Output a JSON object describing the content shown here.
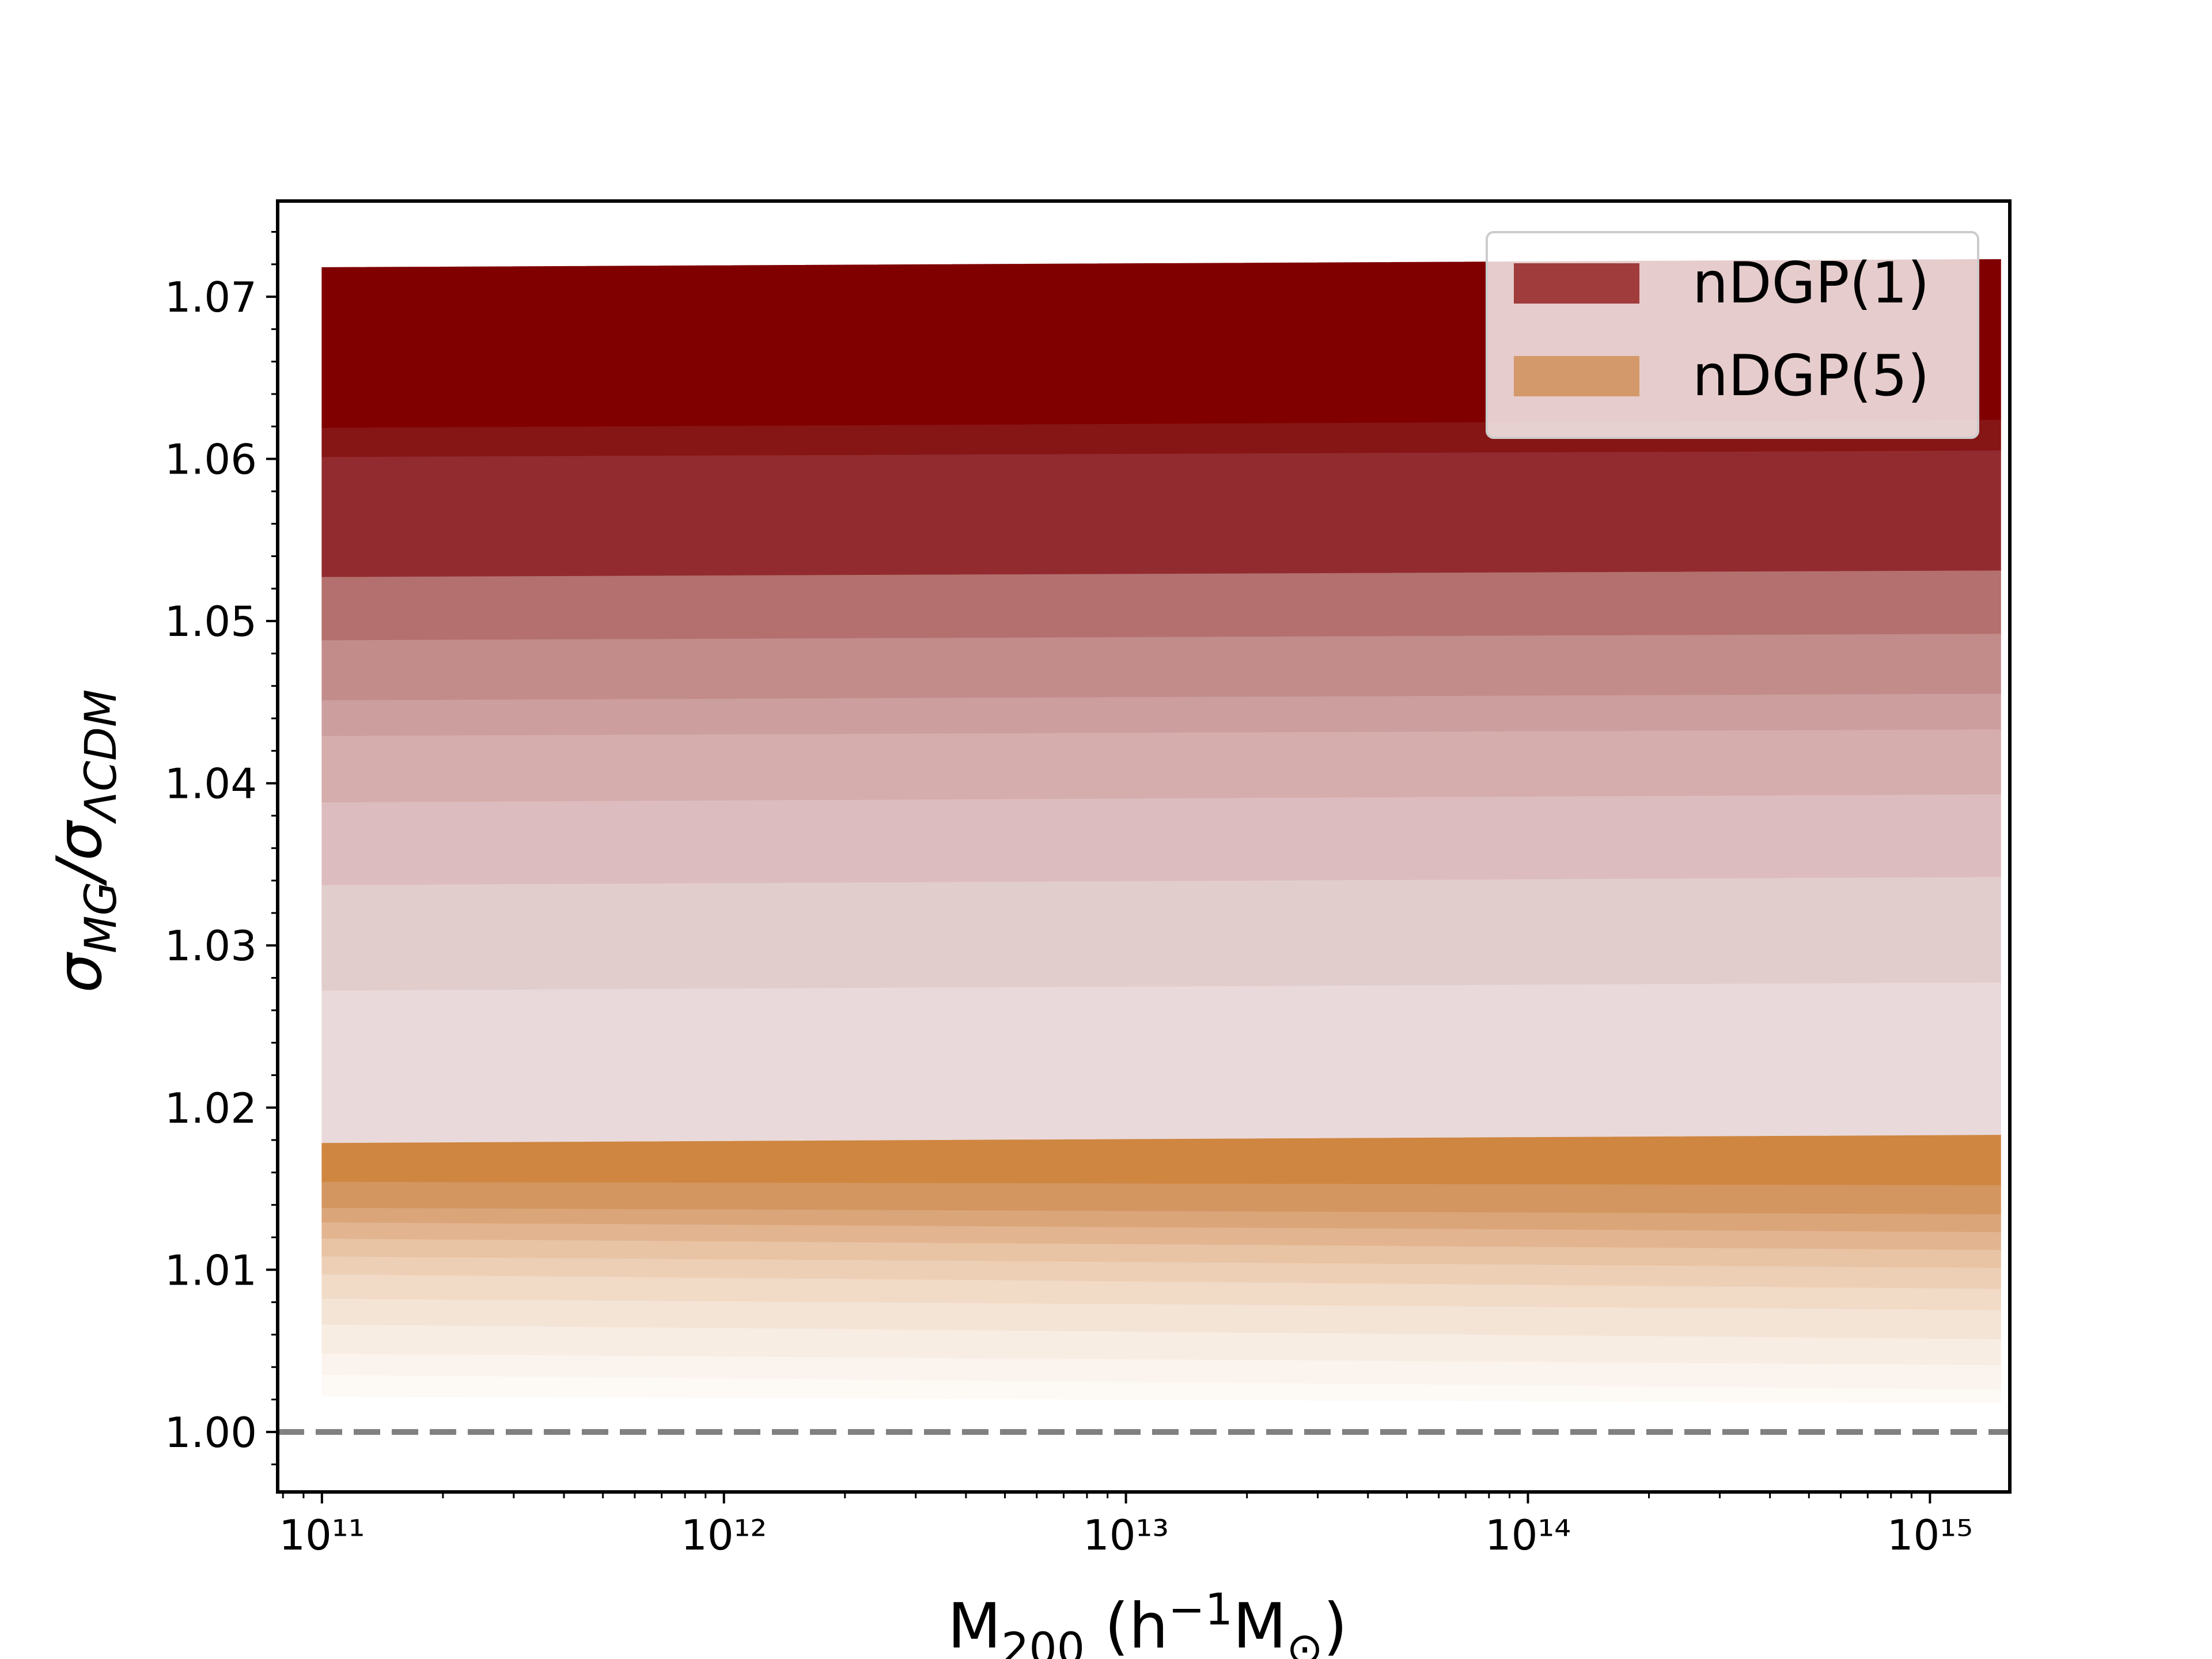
{
  "chart_data": {
    "type": "band",
    "xlabel": [
      "M",
      "200",
      " (h",
      "−1",
      "M",
      "⊙",
      ")"
    ],
    "ylabel": [
      "σ",
      "MG",
      "/σ",
      "ΛCDM"
    ],
    "xscale": "log",
    "xlim": [
      77600000000.0,
      1580000000000000.0
    ],
    "ylim": [
      0.9963,
      1.0759
    ],
    "xticks": [
      {
        "value": 100000000000.0,
        "label": "10¹¹"
      },
      {
        "value": 1000000000000.0,
        "label": "10¹²"
      },
      {
        "value": 10000000000000.0,
        "label": "10¹³"
      },
      {
        "value": 100000000000000.0,
        "label": "10¹⁴"
      },
      {
        "value": 1000000000000000.0,
        "label": "10¹⁵"
      }
    ],
    "xminorticks": [
      80000000000.0,
      90000000000.0,
      200000000000.0,
      300000000000.0,
      400000000000.0,
      500000000000.0,
      600000000000.0,
      700000000000.0,
      800000000000.0,
      900000000000.0,
      2000000000000.0,
      3000000000000.0,
      4000000000000.0,
      5000000000000.0,
      6000000000000.0,
      7000000000000.0,
      8000000000000.0,
      9000000000000.0,
      20000000000000.0,
      30000000000000.0,
      40000000000000.0,
      50000000000000.0,
      60000000000000.0,
      70000000000000.0,
      80000000000000.0,
      90000000000000.0,
      200000000000000.0,
      300000000000000.0,
      400000000000000.0,
      500000000000000.0,
      600000000000000.0,
      700000000000000.0,
      800000000000000.0,
      900000000000000.0
    ],
    "yticks": [
      {
        "value": 1,
        "label": "1.00"
      },
      1.01,
      1.02,
      1.03,
      1.04,
      1.05,
      1.06,
      1.07
    ],
    "yminorticks": [
      0.998,
      1.002,
      1.004,
      1.006,
      1.008,
      1.012,
      1.014,
      1.016,
      1.018,
      1.022,
      1.024,
      1.026,
      1.028,
      1.032,
      1.034,
      1.036,
      1.038,
      1.042,
      1.044,
      1.046,
      1.048,
      1.052,
      1.054,
      1.056,
      1.058,
      1.062,
      1.064,
      1.066,
      1.068,
      1.072,
      1.074
    ],
    "reference_line": {
      "y": 1,
      "color": "#808080",
      "style": "dashed"
    },
    "legend": "upper right",
    "series": [
      {
        "name": "nDGP(1)",
        "color": "#a03c3c",
        "x": [
          100000000000.0,
          1500000000000000.0
        ],
        "levels": [
          [
            1.0718,
            1.0723
          ],
          [
            1.0619,
            1.0624
          ],
          [
            1.0601,
            1.0605
          ],
          [
            1.0527,
            1.0531
          ],
          [
            1.0488,
            1.0492
          ],
          [
            1.0451,
            1.0455
          ],
          [
            1.0429,
            1.0433
          ],
          [
            1.0388,
            1.0393
          ],
          [
            1.0337,
            1.0342
          ],
          [
            1.0272,
            1.0277
          ],
          [
            1.0178,
            1.0183
          ]
        ],
        "band_colors": [
          "#800000",
          "#861515",
          "#922b2f",
          "#b3706e",
          "#c28c8b",
          "#cc9e9e",
          "#d5adac",
          "#ddbcbf",
          "#e2cdcd",
          "#e9d9da"
        ]
      },
      {
        "name": "nDGP(5)",
        "color": "#d4996a",
        "x": [
          100000000000.0,
          1500000000000000.0
        ],
        "levels": [
          [
            1.0178,
            1.0183
          ],
          [
            1.0154,
            1.0152
          ],
          [
            1.0138,
            1.0134
          ],
          [
            1.0129,
            1.0123
          ],
          [
            1.0119,
            1.0112
          ],
          [
            1.0108,
            1.0101
          ],
          [
            1.0097,
            1.0088
          ],
          [
            1.0082,
            1.0075
          ],
          [
            1.0066,
            1.0057
          ],
          [
            1.0048,
            1.0041
          ],
          [
            1.0035,
            1.0026
          ],
          [
            1.0022,
            1.0018
          ]
        ],
        "band_colors": [
          "#cf8640",
          "#d39660",
          "#dba57a",
          "#e2b590",
          "#e8c3a4",
          "#edcfb5",
          "#f1dac6",
          "#f4e4d6",
          "#f8ede3",
          "#fbf4ee",
          "#fdf9f5"
        ]
      }
    ]
  }
}
